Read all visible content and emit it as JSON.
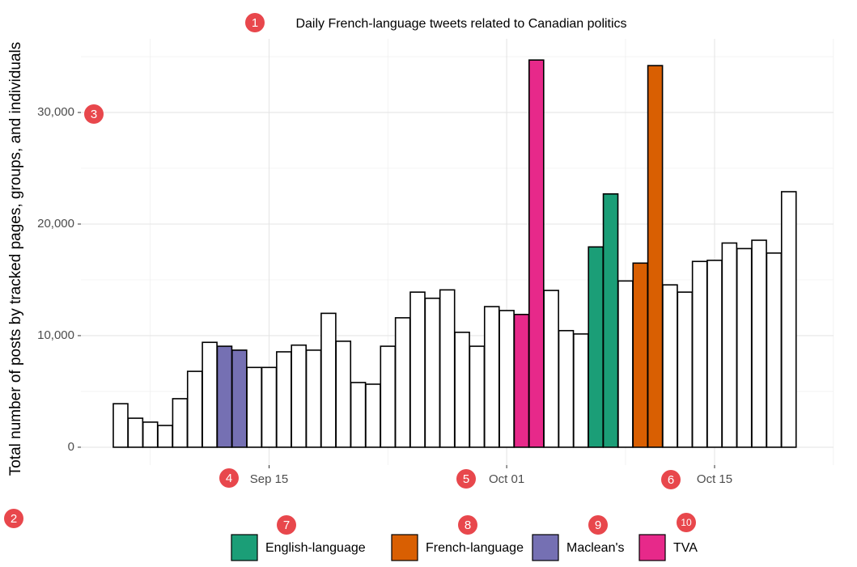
{
  "chart_data": {
    "type": "bar",
    "title": "Daily French-language tweets related to Canadian politics",
    "y_label": "Total number of posts by tracked pages, groups, and individuals",
    "categories": [
      null,
      null,
      null,
      null,
      null,
      null,
      null,
      null,
      null,
      null,
      "Sep 15",
      null,
      null,
      null,
      null,
      null,
      null,
      null,
      null,
      null,
      null,
      null,
      null,
      null,
      null,
      null,
      "Oct 01",
      null,
      null,
      null,
      null,
      null,
      null,
      null,
      null,
      null,
      null,
      null,
      null,
      null,
      "Oct 15",
      null,
      null,
      null,
      null,
      null
    ],
    "values": [
      3900,
      2600,
      2250,
      1950,
      4350,
      6800,
      9400,
      9050,
      8700,
      7150,
      7150,
      8550,
      9150,
      8700,
      12000,
      9500,
      5800,
      5650,
      9050,
      11600,
      13900,
      13350,
      14100,
      10300,
      9050,
      12600,
      12250,
      11900,
      34700,
      14050,
      10450,
      10150,
      17950,
      22700,
      14900,
      16500,
      34200,
      14550,
      13900,
      16650,
      16750,
      18300,
      17800,
      18550,
      17400,
      22900
    ],
    "fills": [
      "#ffffff",
      "#ffffff",
      "#ffffff",
      "#ffffff",
      "#ffffff",
      "#ffffff",
      "#ffffff",
      "#7570b3",
      "#7570b3",
      "#ffffff",
      "#ffffff",
      "#ffffff",
      "#ffffff",
      "#ffffff",
      "#ffffff",
      "#ffffff",
      "#ffffff",
      "#ffffff",
      "#ffffff",
      "#ffffff",
      "#ffffff",
      "#ffffff",
      "#ffffff",
      "#ffffff",
      "#ffffff",
      "#ffffff",
      "#ffffff",
      "#e7298a",
      "#e7298a",
      "#ffffff",
      "#ffffff",
      "#ffffff",
      "#1b9e77",
      "#1b9e77",
      "#ffffff",
      "#d95f02",
      "#d95f02",
      "#ffffff",
      "#ffffff",
      "#ffffff",
      "#ffffff",
      "#ffffff",
      "#ffffff",
      "#ffffff",
      "#ffffff",
      "#ffffff"
    ],
    "legend": [
      {
        "name": "English-language",
        "color": "#1b9e77"
      },
      {
        "name": "French-language",
        "color": "#d95f02"
      },
      {
        "name": "Maclean's",
        "color": "#7570b3"
      },
      {
        "name": "TVA",
        "color": "#e7298a"
      }
    ],
    "ylim": [
      -1600,
      36600
    ],
    "yticks": [
      0,
      {
        "value": 10000,
        "label": "10,000"
      },
      {
        "value": 20000,
        "label": "20,000"
      },
      {
        "value": 30000,
        "label": "30,000"
      }
    ],
    "grid": true
  },
  "badges": [
    "1",
    "2",
    "3",
    "4",
    "5",
    "6",
    "7",
    "8",
    "9",
    "10"
  ]
}
